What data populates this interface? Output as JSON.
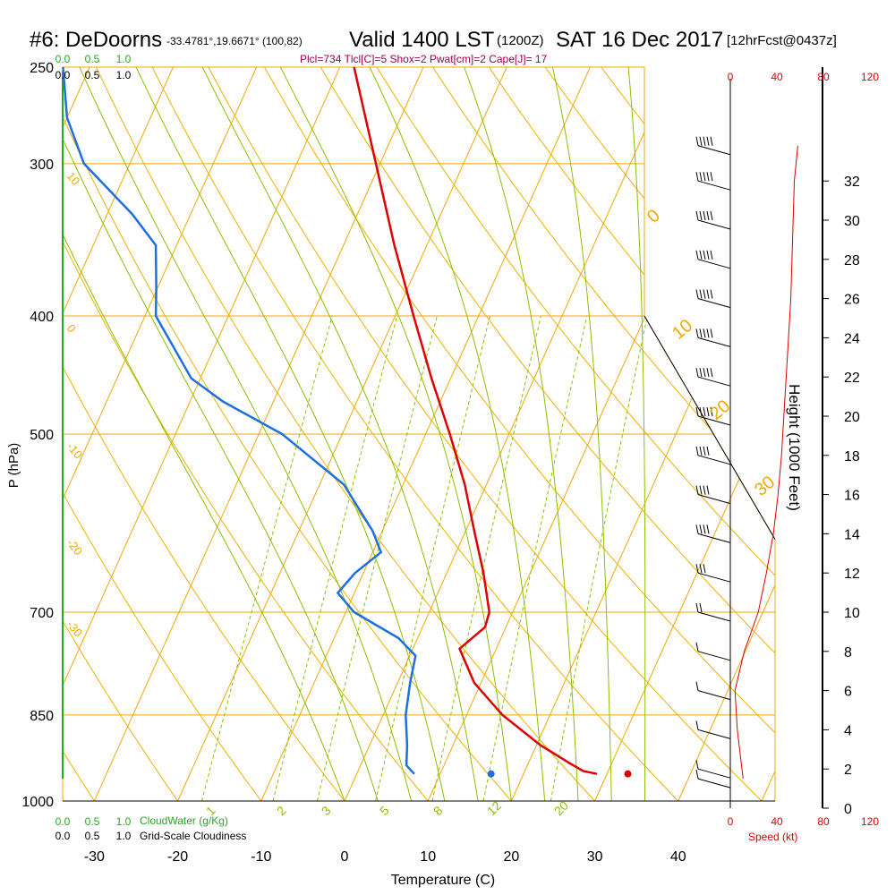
{
  "header": {
    "station": "#6: DeDoorns",
    "coords": "-33.4781°,19.6671° (100,82)",
    "valid": "Valid 1400 LST",
    "utc": "(1200Z)",
    "date": "SAT 16 Dec 2017",
    "fcst": "[12hrFcst@0437z]",
    "indices": "Plcl=734 Tlcl[C]=5 Shox=2 Pwat[cm]=2 Cape[J]= 17"
  },
  "colors": {
    "temperature": "#e00000",
    "dewpoint": "#1f6fdf",
    "isotherm": "#f0a800",
    "dry_adiabat": "#f0b000",
    "moist_adiabat": "#8cc000",
    "mixing_ratio": "#8cc000",
    "cloud": "#22aa22",
    "indices": "#990055",
    "wind_speed": "#dd0000"
  },
  "chart_data": {
    "type": "skew-t",
    "title": "Valid 1400 LST (1200Z) SAT 16 Dec 2017",
    "xlabel": "Temperature (C)",
    "ylabel": "P (hPa)",
    "right_label": "Height (1000 Feet)",
    "pressure_ticks": [
      "250",
      "300",
      "400",
      "500",
      "700",
      "850",
      "1000"
    ],
    "pressure_levels": [
      250,
      300,
      400,
      500,
      700,
      850,
      1000
    ],
    "temperature_ticks": [
      "-30",
      "-20",
      "-10",
      "0",
      "10",
      "20",
      "30",
      "40"
    ],
    "temperature_values": [
      -30,
      -20,
      -10,
      0,
      10,
      20,
      30,
      40
    ],
    "height_ticks": [
      "0",
      "2",
      "4",
      "6",
      "8",
      "10",
      "12",
      "14",
      "16",
      "18",
      "20",
      "22",
      "24",
      "26",
      "28",
      "30",
      "32"
    ],
    "height_values": [
      0,
      2,
      4,
      6,
      8,
      10,
      12,
      14,
      16,
      18,
      20,
      22,
      24,
      26,
      28,
      30,
      32
    ],
    "speed_ticks_top": [
      "0",
      "40",
      "80",
      "120"
    ],
    "speed_ticks_bottom": [
      "0",
      "40",
      "80",
      "120"
    ],
    "speed_label": "Speed (kt)",
    "speed_values": [
      0,
      40,
      80,
      120
    ],
    "cloud_water_ticks": [
      "0.0",
      "0.5",
      "1.0"
    ],
    "cloudiness_ticks": [
      "0.0",
      "0.5",
      "1.0"
    ],
    "cloud_water_label": "CloudWater (g/Kg)",
    "cloudiness_label": "Grid-Scale Cloudiness",
    "adiabat_labels_left": [
      "10",
      "0",
      "-10",
      "-20",
      "-30"
    ],
    "adiabat_labels_right": [
      "0",
      "10",
      "20",
      "30"
    ],
    "mixing_ratio_labels": [
      "1",
      "2",
      "3",
      "5",
      "8",
      "12",
      "20"
    ],
    "temperature_profile": [
      {
        "p": 250,
        "t": -38.3
      },
      {
        "p": 300,
        "t": -30.5
      },
      {
        "p": 350,
        "t": -23.9
      },
      {
        "p": 400,
        "t": -17.8
      },
      {
        "p": 450,
        "t": -12.3
      },
      {
        "p": 500,
        "t": -7.1
      },
      {
        "p": 550,
        "t": -2.6
      },
      {
        "p": 600,
        "t": 1.0
      },
      {
        "p": 650,
        "t": 4.4
      },
      {
        "p": 700,
        "t": 7.2
      },
      {
        "p": 720,
        "t": 7.5
      },
      {
        "p": 750,
        "t": 5.6
      },
      {
        "p": 800,
        "t": 9.2
      },
      {
        "p": 850,
        "t": 14.3
      },
      {
        "p": 900,
        "t": 20.5
      },
      {
        "p": 930,
        "t": 24.8
      },
      {
        "p": 945,
        "t": 27.0
      },
      {
        "p": 950,
        "t": 28.8
      }
    ],
    "dewpoint_profile": [
      {
        "p": 250,
        "td": -73.2
      },
      {
        "p": 275,
        "td": -70.0
      },
      {
        "p": 300,
        "td": -65.5
      },
      {
        "p": 330,
        "td": -57.0
      },
      {
        "p": 350,
        "td": -52.5
      },
      {
        "p": 380,
        "td": -50.1
      },
      {
        "p": 400,
        "td": -48.7
      },
      {
        "p": 450,
        "td": -41.1
      },
      {
        "p": 470,
        "td": -36.1
      },
      {
        "p": 500,
        "td": -27.2
      },
      {
        "p": 550,
        "td": -17.1
      },
      {
        "p": 600,
        "td": -11.2
      },
      {
        "p": 625,
        "td": -9.0
      },
      {
        "p": 650,
        "td": -11.0
      },
      {
        "p": 675,
        "td": -12.0
      },
      {
        "p": 700,
        "td": -9.0
      },
      {
        "p": 735,
        "td": -2.3
      },
      {
        "p": 760,
        "td": 0.7
      },
      {
        "p": 800,
        "td": 1.5
      },
      {
        "p": 850,
        "td": 2.7
      },
      {
        "p": 900,
        "td": 4.5
      },
      {
        "p": 935,
        "td": 5.5
      },
      {
        "p": 950,
        "td": 6.9
      }
    ],
    "parcel_surface_temperature": 32.5,
    "parcel_surface_dewpoint": 16.1,
    "surface_pressure": 950,
    "wind_speed_profile": [
      {
        "h": 1.5,
        "kt": 11
      },
      {
        "h": 2,
        "kt": 10
      },
      {
        "h": 4,
        "kt": 6
      },
      {
        "h": 6,
        "kt": 4
      },
      {
        "h": 8,
        "kt": 12
      },
      {
        "h": 10,
        "kt": 24
      },
      {
        "h": 12,
        "kt": 31
      },
      {
        "h": 14,
        "kt": 37
      },
      {
        "h": 16,
        "kt": 41
      },
      {
        "h": 18,
        "kt": 44
      },
      {
        "h": 20,
        "kt": 46
      },
      {
        "h": 22,
        "kt": 48
      },
      {
        "h": 24,
        "kt": 50
      },
      {
        "h": 26,
        "kt": 52
      },
      {
        "h": 28,
        "kt": 53
      },
      {
        "h": 30,
        "kt": 54
      },
      {
        "h": 32,
        "kt": 55
      },
      {
        "h": 33.8,
        "kt": 58
      }
    ]
  }
}
